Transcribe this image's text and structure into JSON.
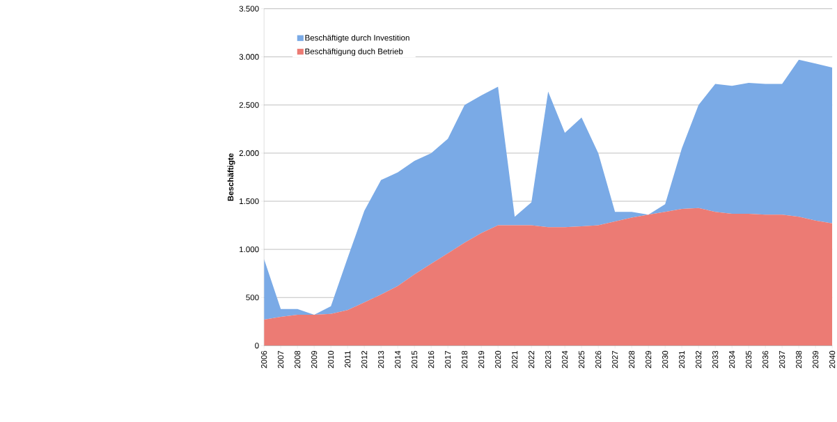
{
  "chart_data": {
    "type": "area",
    "stacked": true,
    "ylabel": "Beschäftigte",
    "categories": [
      "2006",
      "2007",
      "2008",
      "2009",
      "2010",
      "2011",
      "2012",
      "2013",
      "2014",
      "2015",
      "2016",
      "2017",
      "2018",
      "2019",
      "2020",
      "2021",
      "2022",
      "2023",
      "2024",
      "2025",
      "2026",
      "2027",
      "2028",
      "2029",
      "2030",
      "2031",
      "2032",
      "2033",
      "2034",
      "2035",
      "2036",
      "2037",
      "2038",
      "2039",
      "2040"
    ],
    "series": [
      {
        "name": "Beschäftigung duch Betrieb",
        "color": "#ec7b74",
        "values": [
          270,
          300,
          320,
          320,
          330,
          370,
          450,
          530,
          620,
          740,
          850,
          960,
          1070,
          1170,
          1250,
          1250,
          1250,
          1230,
          1230,
          1240,
          1250,
          1290,
          1330,
          1360,
          1390,
          1420,
          1430,
          1390,
          1370,
          1370,
          1360,
          1360,
          1340,
          1300,
          1270
        ]
      },
      {
        "name": "Beschäftigte durch Investition",
        "color": "#7aaae6",
        "values": [
          630,
          80,
          60,
          0,
          80,
          540,
          950,
          1190,
          1180,
          1180,
          1150,
          1190,
          1430,
          1430,
          1440,
          90,
          240,
          1410,
          980,
          1130,
          750,
          100,
          60,
          0,
          80,
          630,
          1070,
          1330,
          1330,
          1360,
          1360,
          1360,
          1630,
          1630,
          1620
        ]
      }
    ],
    "ylim": [
      0,
      3500
    ],
    "yticks": [
      0,
      500,
      {
        "value": 1000,
        "label": "1.000"
      },
      {
        "value": 1500,
        "label": "1.500"
      },
      {
        "value": 2000,
        "label": "2.000"
      },
      {
        "value": 2500,
        "label": "2.500"
      },
      {
        "value": 3000,
        "label": "3.000"
      },
      {
        "value": 3500,
        "label": "3.500"
      }
    ],
    "grid": "y",
    "legend": "top left"
  }
}
